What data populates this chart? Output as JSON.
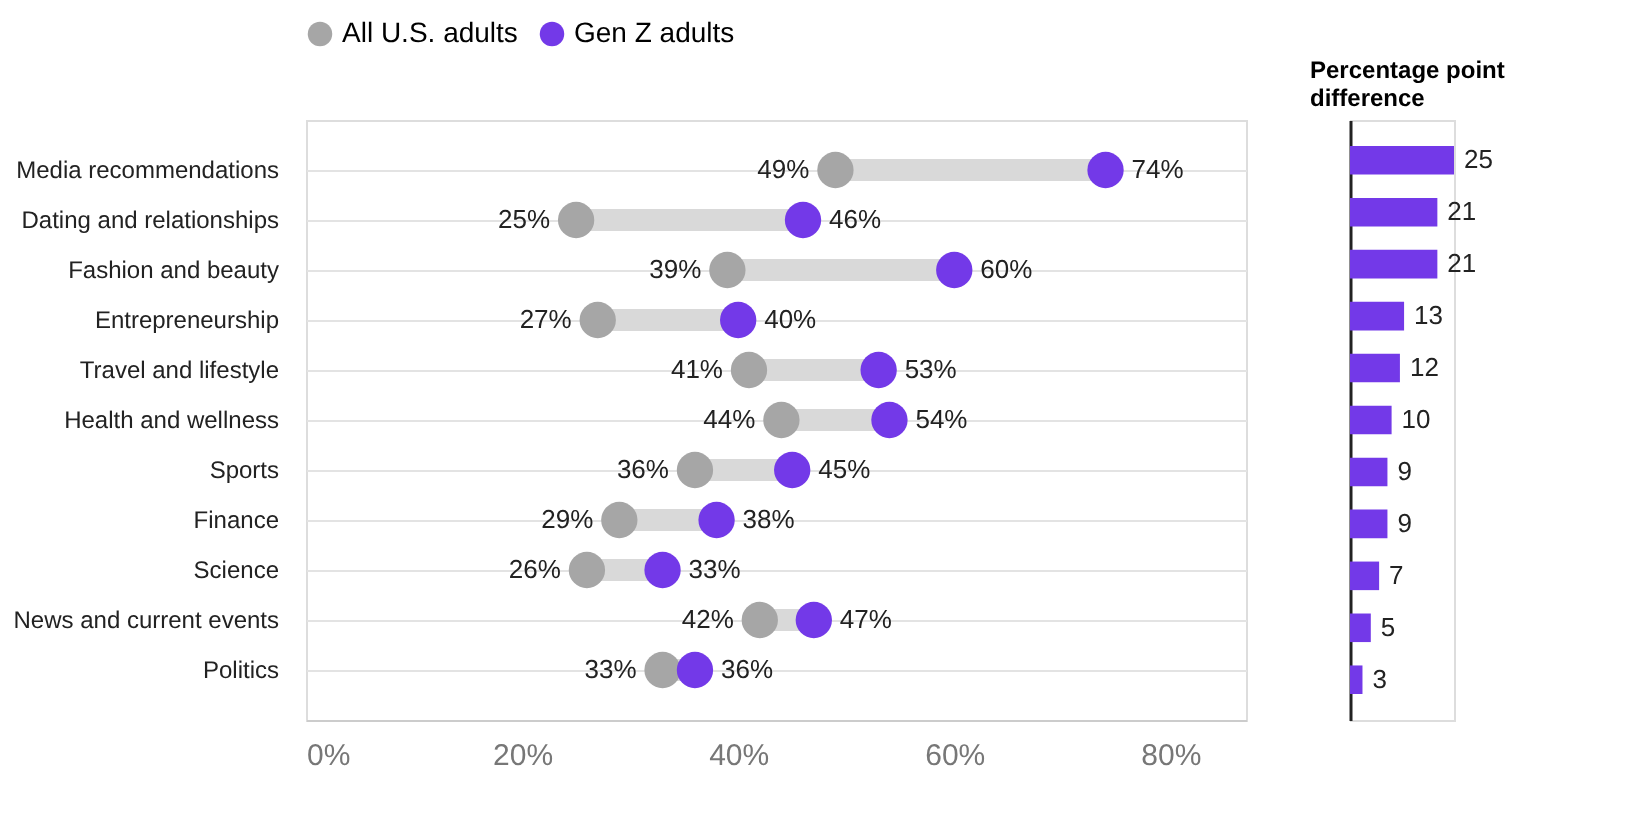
{
  "chart_data": [
    {
      "type": "scatter",
      "orientation": "horizontal",
      "categories": [
        "Media recommendations",
        "Dating and relationships",
        "Fashion and beauty",
        "Entrepreneurship",
        "Travel and lifestyle",
        "Health and wellness",
        "Sports",
        "Finance",
        "Science",
        "News and current events",
        "Politics"
      ],
      "series": [
        {
          "name": "All U.S. adults",
          "color": "#a6a6a6",
          "values": [
            49,
            25,
            39,
            27,
            41,
            44,
            36,
            29,
            26,
            42,
            33
          ],
          "value_labels": [
            "49%",
            "25%",
            "39%",
            "27%",
            "41%",
            "44%",
            "36%",
            "29%",
            "26%",
            "42%",
            "33%"
          ]
        },
        {
          "name": "Gen Z adults",
          "color": "#7339e8",
          "values": [
            74,
            46,
            60,
            40,
            53,
            54,
            45,
            38,
            33,
            47,
            36
          ],
          "value_labels": [
            "74%",
            "46%",
            "60%",
            "40%",
            "53%",
            "54%",
            "45%",
            "38%",
            "33%",
            "47%",
            "36%"
          ]
        }
      ],
      "xlim": [
        0,
        87
      ],
      "xticks": [
        {
          "value": 0,
          "label": "0%"
        },
        {
          "value": 20,
          "label": "20%"
        },
        {
          "value": 40,
          "label": "40%"
        },
        {
          "value": 60,
          "label": "60%"
        },
        {
          "value": 80,
          "label": "80%"
        }
      ],
      "grid": "y",
      "legend": "top",
      "marker": "circle"
    },
    {
      "type": "bar",
      "orientation": "horizontal",
      "title": "Percentage point difference",
      "categories": [
        null,
        null,
        null,
        null,
        null,
        null,
        null,
        null,
        null,
        null,
        null
      ],
      "values": [
        25,
        21,
        21,
        13,
        12,
        10,
        9,
        9,
        7,
        5,
        3
      ],
      "color": "#7339e8",
      "xlim": [
        0,
        25
      ],
      "data_labels": true,
      "tick_labels": false
    }
  ]
}
